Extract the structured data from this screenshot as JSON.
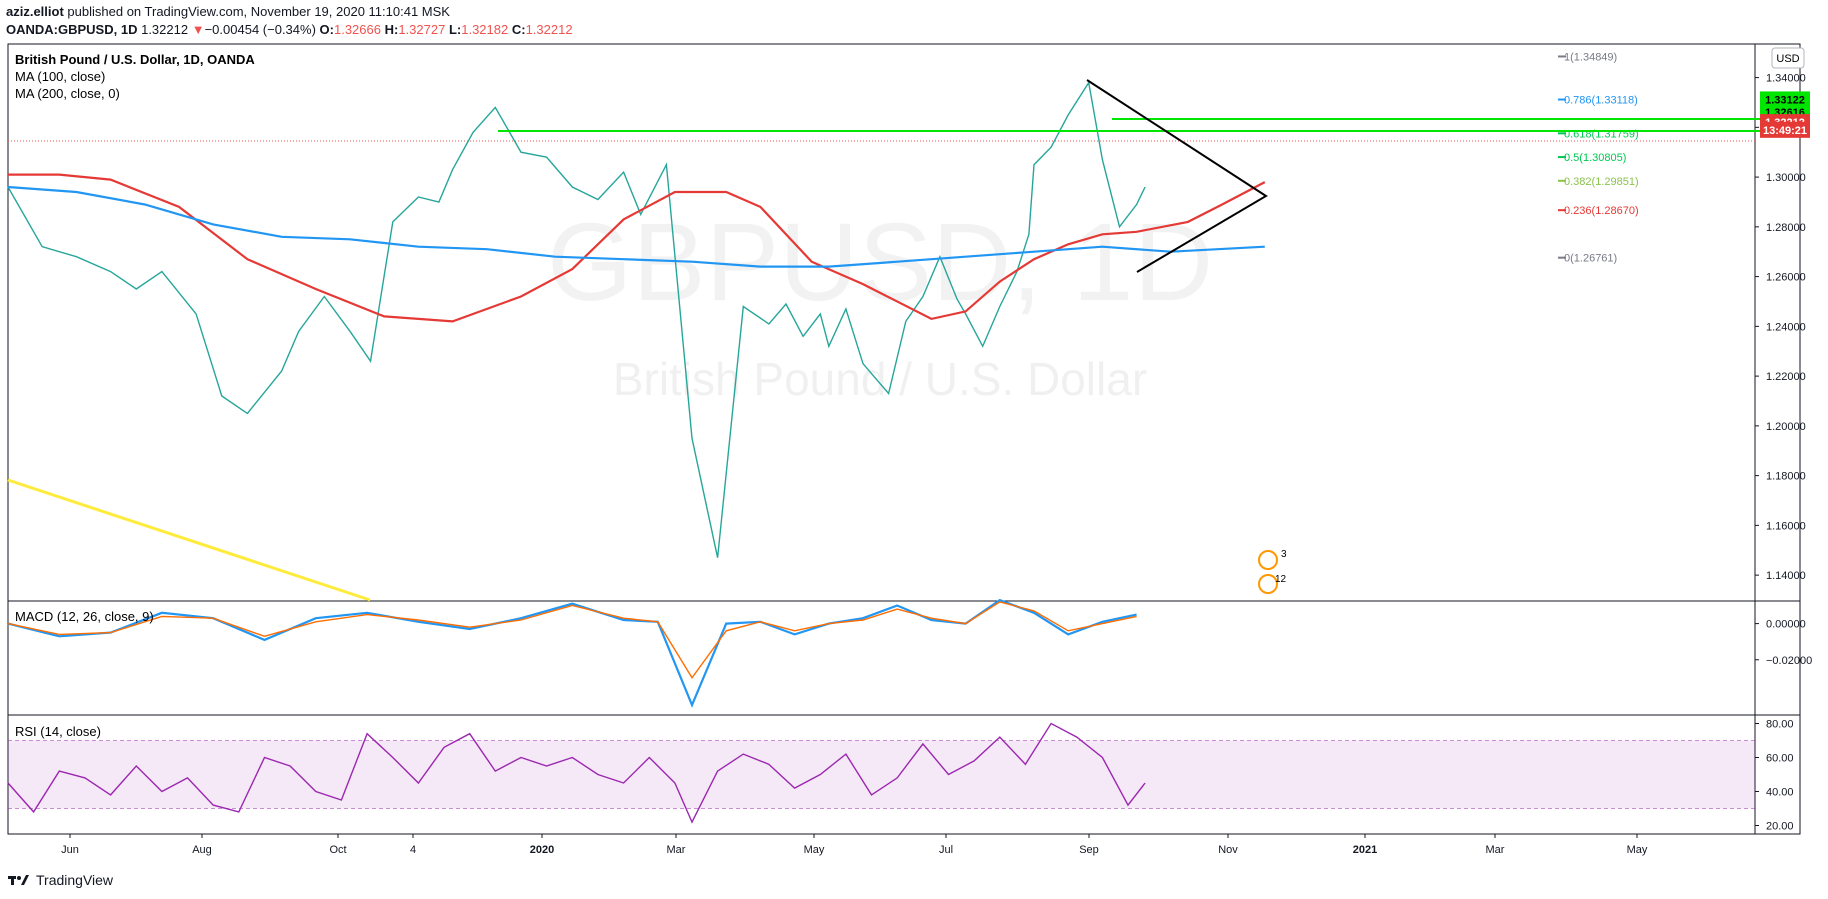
{
  "header": {
    "author": "aziz.elliot",
    "published_text": "published on TradingView.com, November 19, 2020 11:10:41 MSK",
    "symbol": "OANDA:GBPUSD, 1D",
    "last": "1.32212",
    "change_arrow": "▼",
    "change": "−0.00454 (−0.34%)",
    "o_label": "O:",
    "o": "1.32666",
    "h_label": "H:",
    "h": "1.32727",
    "l_label": "L:",
    "l": "1.32182",
    "c_label": "C:",
    "c": "1.32212"
  },
  "chart_data": [
    {
      "type": "line",
      "title": "British Pound / U.S. Dollar, 1D, OANDA",
      "watermark_symbol": "GBPUSD, 1D",
      "watermark_name": "British Pound / U.S. Dollar",
      "currency": "USD",
      "studies": [
        "MA (100, close)",
        "MA (200, close, 0)"
      ],
      "ylim": [
        1.13,
        1.3535
      ],
      "y_ticks": [
        "1.34000",
        "1.32000",
        "1.30000",
        "1.28000",
        "1.26000",
        "1.24000",
        "1.22000",
        "1.20000",
        "1.18000",
        "1.16000",
        "1.14000"
      ],
      "x_ticks": [
        "Jun",
        "Aug",
        "Oct",
        "4",
        "2020",
        "Mar",
        "May",
        "Jul",
        "Sep",
        "Nov",
        "2021",
        "Mar",
        "May"
      ],
      "series": [
        {
          "name": "GBPUSD close",
          "color": "#26a69a",
          "x_index": [
            0,
            20,
            40,
            60,
            75,
            90,
            110,
            125,
            140,
            160,
            170,
            185,
            200,
            212,
            225,
            240,
            252,
            260,
            272,
            285,
            300,
            315,
            330,
            345,
            360,
            370,
            385,
            400,
            415,
            430,
            445,
            455,
            465,
            475,
            480,
            490,
            500,
            515,
            525,
            535,
            545,
            555,
            560,
            570,
            580,
            590,
            597,
            600,
            610,
            620,
            632,
            640,
            650,
            660,
            665
          ],
          "values": [
            1.296,
            1.272,
            1.268,
            1.262,
            1.255,
            1.262,
            1.245,
            1.212,
            1.205,
            1.222,
            1.238,
            1.252,
            1.238,
            1.226,
            1.282,
            1.292,
            1.29,
            1.303,
            1.318,
            1.328,
            1.31,
            1.308,
            1.296,
            1.291,
            1.302,
            1.285,
            1.305,
            1.195,
            1.147,
            1.248,
            1.241,
            1.249,
            1.236,
            1.245,
            1.232,
            1.247,
            1.225,
            1.213,
            1.242,
            1.252,
            1.268,
            1.251,
            1.245,
            1.232,
            1.248,
            1.262,
            1.277,
            1.305,
            1.312,
            1.325,
            1.338,
            1.307,
            1.28,
            1.289,
            1.296
          ]
        },
        {
          "name": "MA (100, close)",
          "color": "#e53935",
          "x_index": [
            0,
            30,
            60,
            100,
            140,
            180,
            220,
            260,
            300,
            330,
            360,
            390,
            420,
            440,
            470,
            500,
            540,
            560,
            580,
            600,
            620,
            640,
            660,
            690,
            710,
            735
          ],
          "values": [
            1.301,
            1.301,
            1.299,
            1.288,
            1.267,
            1.255,
            1.244,
            1.242,
            1.252,
            1.263,
            1.283,
            1.294,
            1.294,
            1.288,
            1.266,
            1.257,
            1.243,
            1.246,
            1.258,
            1.267,
            1.273,
            1.277,
            1.278,
            1.282,
            1.289,
            1.298
          ]
        },
        {
          "name": "MA (200, close, 0)",
          "color": "#2196f3",
          "x_index": [
            0,
            40,
            80,
            120,
            160,
            200,
            240,
            280,
            320,
            360,
            400,
            440,
            480,
            520,
            560,
            600,
            640,
            680,
            735
          ],
          "values": [
            1.296,
            1.294,
            1.289,
            1.281,
            1.276,
            1.275,
            1.272,
            1.271,
            1.268,
            1.267,
            1.266,
            1.264,
            1.264,
            1.266,
            1.268,
            1.27,
            1.272,
            1.27,
            1.272
          ]
        }
      ],
      "fibonacci": [
        {
          "label": "1(1.34849)",
          "price": 1.34849,
          "color": "#787b86"
        },
        {
          "label": "0.786(1.33118)",
          "price": 1.33118,
          "color": "#2196f3"
        },
        {
          "label": "0.618(1.31759)",
          "price": 1.31759,
          "color": "#00c853"
        },
        {
          "label": "0.5(1.30805)",
          "price": 1.30805,
          "color": "#00c853"
        },
        {
          "label": "0.382(1.29851)",
          "price": 1.29851,
          "color": "#8bc34a"
        },
        {
          "label": "0.236(1.28670)",
          "price": 1.2867,
          "color": "#e53935"
        },
        {
          "label": "0(1.26761)",
          "price": 1.26761,
          "color": "#787b86"
        }
      ],
      "price_tags": [
        {
          "text": "1.33122",
          "price": 1.33122,
          "color": "#00e600",
          "text_color": "#000000"
        },
        {
          "text": "1.32616",
          "price": 1.32616,
          "color": "#00e600",
          "text_color": "#000000"
        },
        {
          "text": "1.32212",
          "price": 1.32212,
          "color": "#e53935",
          "text_color": "#ffffff"
        },
        {
          "text": "13:49:21",
          "price": 1.319,
          "color": "#e53935",
          "text_color": "#ffffff"
        }
      ],
      "event_badges": [
        "3",
        "12"
      ]
    },
    {
      "type": "line",
      "title": "MACD (12, 26, close, 9)",
      "ylim": [
        -0.05,
        0.0125
      ],
      "y_ticks": [
        "0.00000",
        "−0.02000"
      ],
      "series": [
        {
          "name": "MACD",
          "color": "#2196f3",
          "x_index": [
            0,
            30,
            60,
            90,
            120,
            150,
            180,
            210,
            240,
            270,
            300,
            330,
            360,
            380,
            400,
            420,
            440,
            460,
            480,
            500,
            520,
            540,
            560,
            580,
            600,
            620,
            640,
            660
          ],
          "values": [
            0,
            -0.007,
            -0.005,
            0.006,
            0.003,
            -0.009,
            0.003,
            0.006,
            0.001,
            -0.003,
            0.003,
            0.011,
            0.002,
            0.001,
            -0.045,
            0.0,
            0.001,
            -0.006,
            0.0,
            0.003,
            0.01,
            0.002,
            0.0,
            0.013,
            0.006,
            -0.006,
            0.001,
            0.005
          ]
        },
        {
          "name": "Signal",
          "color": "#ff6d00",
          "x_index": [
            0,
            30,
            60,
            90,
            120,
            150,
            180,
            210,
            240,
            270,
            300,
            330,
            360,
            380,
            400,
            420,
            440,
            460,
            480,
            500,
            520,
            540,
            560,
            580,
            600,
            620,
            640,
            660
          ],
          "values": [
            0,
            -0.006,
            -0.005,
            0.004,
            0.003,
            -0.007,
            0.001,
            0.005,
            0.002,
            -0.002,
            0.002,
            0.01,
            0.003,
            0.001,
            -0.03,
            -0.004,
            0.001,
            -0.004,
            0.0,
            0.002,
            0.008,
            0.003,
            0.0,
            0.012,
            0.007,
            -0.004,
            0.0,
            0.004
          ]
        }
      ]
    },
    {
      "type": "line",
      "title": "RSI (14, close)",
      "ylim": [
        15,
        85
      ],
      "y_ticks": [
        "80.00",
        "60.00",
        "40.00",
        "20.00"
      ],
      "band": [
        30,
        70
      ],
      "series": [
        {
          "name": "RSI",
          "color": "#9c27b0",
          "x_index": [
            0,
            15,
            30,
            45,
            60,
            75,
            90,
            105,
            120,
            135,
            150,
            165,
            180,
            195,
            210,
            225,
            240,
            255,
            270,
            285,
            300,
            315,
            330,
            345,
            360,
            375,
            390,
            400,
            415,
            430,
            445,
            460,
            475,
            490,
            505,
            520,
            535,
            550,
            565,
            580,
            595,
            610,
            625,
            640,
            655,
            665
          ],
          "values": [
            45,
            28,
            52,
            48,
            38,
            55,
            40,
            48,
            32,
            28,
            60,
            55,
            40,
            35,
            74,
            60,
            45,
            66,
            74,
            52,
            60,
            55,
            60,
            50,
            45,
            60,
            45,
            22,
            52,
            62,
            56,
            42,
            50,
            62,
            38,
            48,
            68,
            50,
            58,
            72,
            56,
            80,
            72,
            60,
            32,
            45
          ]
        }
      ]
    }
  ],
  "time_axis": {
    "labels": [
      "Jun",
      "Aug",
      "Oct",
      "4",
      "2020",
      "Mar",
      "May",
      "Jul",
      "Sep",
      "Nov",
      "2021",
      "Mar",
      "May"
    ]
  },
  "footer": {
    "brand": "TradingView"
  }
}
